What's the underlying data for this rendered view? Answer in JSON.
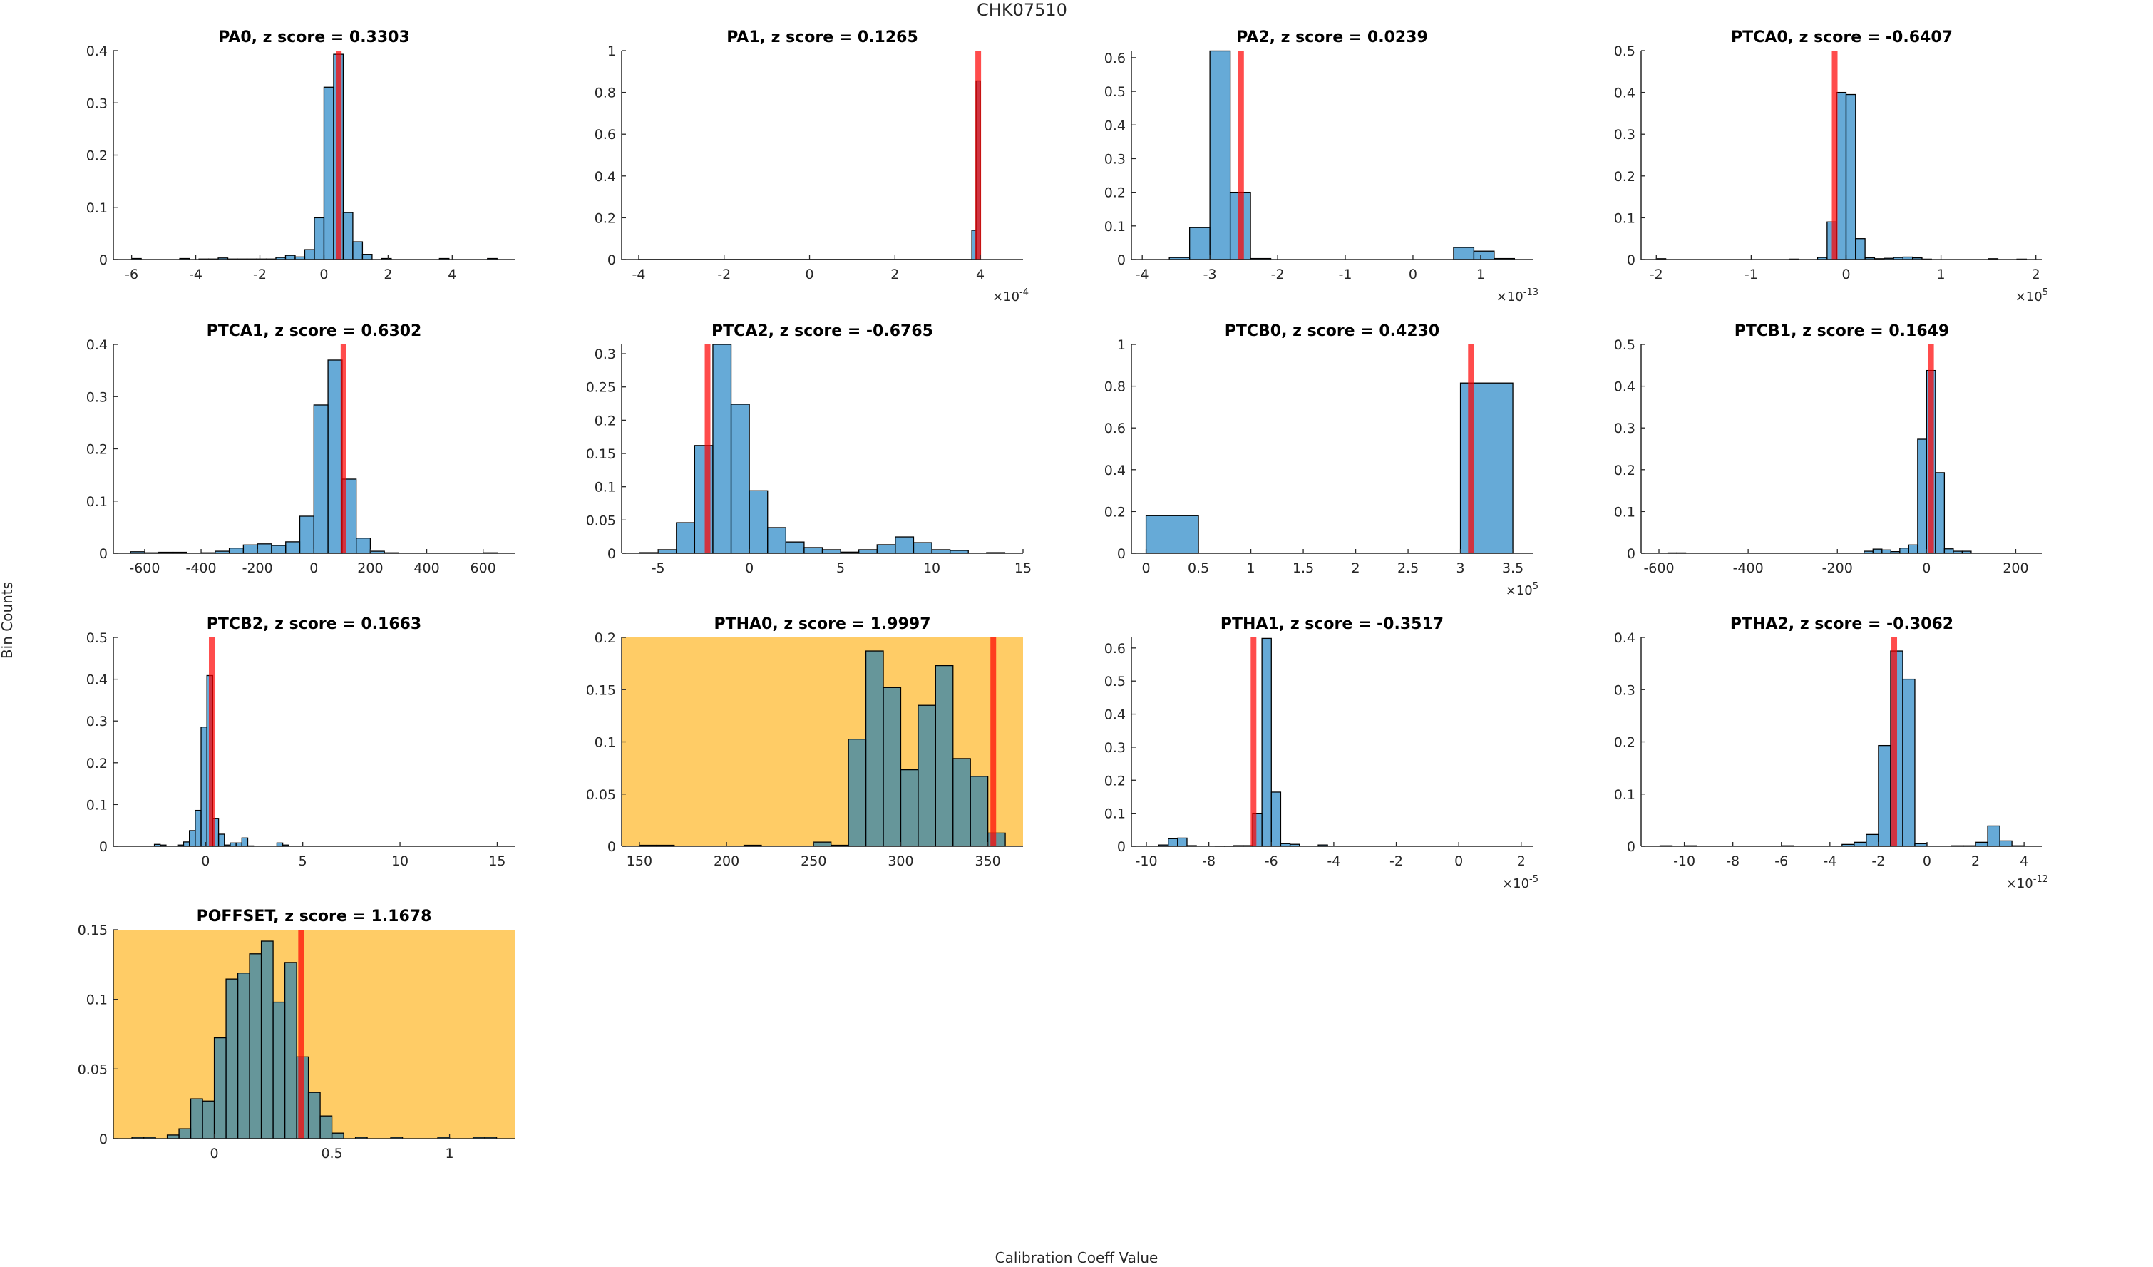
{
  "figure": {
    "title": "CHK07510"
  },
  "colors": {
    "bar": "#0072BD",
    "marker": "#FF0000",
    "highlight_bg": "#FFCC66"
  },
  "chart_data": {
    "type": "bar",
    "subtype": "histogram-grid",
    "title": "CHK07510",
    "xlabel": "Calibration Coeff Value",
    "ylabel": "Bin Counts",
    "grid": false,
    "panels": [
      {
        "title": "PA0, z score = 0.3303",
        "xlim": [
          -6.57,
          5.95
        ],
        "ylim": [
          0,
          0.4
        ],
        "xticks": [
          -6,
          -4,
          -2,
          0,
          2,
          4
        ],
        "yticks": [
          0,
          0.1,
          0.2,
          0.3,
          0.4
        ],
        "bin_start": -6.0,
        "bin_width": 0.3,
        "counts": [
          0.002,
          0,
          0,
          0,
          0,
          0.002,
          0,
          0.001,
          0.001,
          0.003,
          0.001,
          0.001,
          0.001,
          0.001,
          0.001,
          0.004,
          0.008,
          0.005,
          0.019,
          0.08,
          0.33,
          0.393,
          0.09,
          0.034,
          0.01,
          0,
          0.002,
          0,
          0,
          0,
          0,
          0,
          0.002,
          0,
          0,
          0,
          0,
          0.002
        ],
        "marker": 0.46,
        "highlighted": false
      },
      {
        "title": "PA1, z score = 0.1265",
        "xlim": [
          -4.4,
          5.0
        ],
        "ylim": [
          0,
          1
        ],
        "xticks": [
          -4,
          -2,
          0,
          2,
          4
        ],
        "yticks": [
          0,
          0.2,
          0.4,
          0.6,
          0.8,
          1
        ],
        "x_exponent": {
          "base": "×10",
          "power": "-4"
        },
        "edges": [
          -4.0,
          3.8,
          3.9,
          4.0
        ],
        "counts": [
          0.0005,
          0.14,
          0.855
        ],
        "marker": 3.95,
        "highlighted": false
      },
      {
        "title": "PA2, z score = 0.0239",
        "xlim": [
          -4.16,
          1.77
        ],
        "ylim": [
          0,
          0.621
        ],
        "xticks": [
          -4,
          -3,
          -2,
          -1,
          0,
          1
        ],
        "yticks": [
          0,
          0.1,
          0.2,
          0.3,
          0.4,
          0.5,
          0.6
        ],
        "x_exponent": {
          "base": "×10",
          "power": "-13"
        },
        "bin_start": -3.9,
        "bin_width": 0.3,
        "counts": [
          0,
          0.006,
          0.095,
          0.62,
          0.2,
          0.003,
          0,
          0,
          0,
          0,
          0,
          0,
          0,
          0,
          0,
          0.036,
          0.025,
          0.003
        ],
        "marker": -2.54,
        "highlighted": false
      },
      {
        "title": "PTCA0, z score = -0.6407",
        "xlim": [
          -2.16,
          2.07
        ],
        "ylim": [
          0,
          0.5
        ],
        "xticks": [
          -2,
          -1,
          0,
          1,
          2
        ],
        "yticks": [
          0,
          0.1,
          0.2,
          0.3,
          0.4,
          0.5
        ],
        "x_exponent": {
          "base": "×10",
          "power": "5"
        },
        "bin_start": -2.0,
        "bin_width": 0.1,
        "counts": [
          0.002,
          0,
          0,
          0,
          0,
          0,
          0,
          0,
          0,
          0,
          0,
          0,
          0,
          0,
          0.001,
          0,
          0,
          0.005,
          0.09,
          0.4,
          0.395,
          0.05,
          0.004,
          0.002,
          0.003,
          0.005,
          0.006,
          0.004,
          0.001,
          0,
          0,
          0,
          0,
          0,
          0,
          0.002,
          0,
          0,
          0.001,
          0
        ],
        "marker": -0.12,
        "highlighted": false
      },
      {
        "title": "PTCA1, z score = 0.6302",
        "xlim": [
          -711,
          712
        ],
        "ylim": [
          0,
          0.4
        ],
        "xticks": [
          -600,
          -400,
          -200,
          0,
          200,
          400,
          600
        ],
        "yticks": [
          0,
          0.1,
          0.2,
          0.3,
          0.4
        ],
        "bin_start": -650,
        "bin_width": 50,
        "counts": [
          0.003,
          0.001,
          0.002,
          0.002,
          0,
          0.001,
          0.004,
          0.01,
          0.016,
          0.018,
          0.015,
          0.022,
          0.071,
          0.284,
          0.37,
          0.142,
          0.029,
          0.004,
          0.001,
          0,
          0,
          0,
          0,
          0,
          0,
          0.001
        ],
        "marker": 105,
        "highlighted": false
      },
      {
        "title": "PTCA2, z score = -0.6765",
        "xlim": [
          -7,
          15
        ],
        "ylim": [
          0,
          0.314
        ],
        "xticks": [
          -5,
          0,
          5,
          10,
          15
        ],
        "yticks": [
          0,
          0.05,
          0.1,
          0.15,
          0.2,
          0.25,
          0.3
        ],
        "bin_start": -6,
        "bin_width": 1,
        "counts": [
          0.001,
          0.0054,
          0.046,
          0.162,
          0.314,
          0.224,
          0.094,
          0.0386,
          0.017,
          0.0086,
          0.0054,
          0.0018,
          0.0054,
          0.0129,
          0.0246,
          0.016,
          0.0054,
          0.0043,
          0,
          0.001
        ],
        "marker": -2.29,
        "highlighted": false
      },
      {
        "title": "PTCB0, z score = 0.4230",
        "xlim": [
          -0.14,
          3.69
        ],
        "ylim": [
          0,
          1
        ],
        "xticks": [
          0,
          0.5,
          1,
          1.5,
          2,
          2.5,
          3,
          3.5
        ],
        "yticks": [
          0,
          0.2,
          0.4,
          0.6,
          0.8,
          1
        ],
        "x_exponent": {
          "base": "×10",
          "power": "5"
        },
        "bin_start": 0,
        "bin_width": 0.5,
        "counts": [
          0.18,
          0,
          0,
          0,
          0,
          0,
          0.815
        ],
        "marker": 3.1,
        "highlighted": false
      },
      {
        "title": "PTCB1, z score = 0.1649",
        "xlim": [
          -640,
          260
        ],
        "ylim": [
          0,
          0.5
        ],
        "xticks": [
          -600,
          -400,
          -200,
          0,
          200
        ],
        "yticks": [
          0,
          0.1,
          0.2,
          0.3,
          0.4,
          0.5
        ],
        "bin_start": -600,
        "bin_width": 20,
        "counts": [
          0,
          0.001,
          0.001,
          0,
          0,
          0,
          0,
          0,
          0,
          0,
          0,
          0,
          0,
          0,
          0,
          0,
          0,
          0,
          0,
          0,
          0,
          0,
          0,
          0.005,
          0.01,
          0.008,
          0.004,
          0.0125,
          0.02,
          0.273,
          0.4375,
          0.193,
          0.0107,
          0.005,
          0.005,
          0,
          0,
          0,
          0,
          0,
          0
        ],
        "marker": 10,
        "highlighted": false
      },
      {
        "title": "PTCB2, z score = 0.1663",
        "xlim": [
          -4.74,
          15.9
        ],
        "ylim": [
          0,
          0.5
        ],
        "xticks": [
          0,
          5,
          10,
          15
        ],
        "yticks": [
          0,
          0.1,
          0.2,
          0.3,
          0.4,
          0.5
        ],
        "bin_start": -3.83,
        "bin_width": 0.3,
        "counts": [
          0,
          0,
          0,
          0,
          0.0046,
          0.003,
          0,
          0,
          0.003,
          0.0104,
          0.0376,
          0.086,
          0.2855,
          0.4087,
          0.067,
          0.029,
          0.003,
          0.008,
          0.008,
          0.02,
          0.001,
          0,
          0,
          0,
          0,
          0.008,
          0.003,
          0,
          0,
          0,
          0,
          0,
          0,
          0,
          0,
          0,
          0,
          0,
          0,
          0,
          0,
          0,
          0,
          0,
          0,
          0,
          0,
          0,
          0,
          0,
          0,
          0,
          0,
          0,
          0,
          0,
          0,
          0,
          0,
          0,
          0,
          0
        ],
        "marker": 0.32,
        "highlighted": false
      },
      {
        "title": "PTHA0, z score = 1.9997",
        "xlim": [
          139.8,
          370.2
        ],
        "ylim": [
          0,
          0.2
        ],
        "xticks": [
          150,
          200,
          250,
          300,
          350
        ],
        "yticks": [
          0,
          0.05,
          0.1,
          0.15,
          0.2
        ],
        "bin_start": 150,
        "bin_width": 10,
        "counts": [
          0.001,
          0.001,
          0,
          0,
          0,
          0,
          0.001,
          0,
          0,
          0,
          0.004,
          0.001,
          0.1026,
          0.187,
          0.152,
          0.0733,
          0.135,
          0.173,
          0.084,
          0.067,
          0.0127
        ],
        "marker": 353.1,
        "highlighted": true
      },
      {
        "title": "PTHA1, z score = -0.3517",
        "xlim": [
          -10.48,
          2.37
        ],
        "ylim": [
          0,
          0.632
        ],
        "xticks": [
          -10,
          -8,
          -6,
          -4,
          -2,
          0,
          2
        ],
        "yticks": [
          0,
          0.1,
          0.2,
          0.3,
          0.4,
          0.5,
          0.6
        ],
        "x_exponent": {
          "base": "×10",
          "power": "-5"
        },
        "bin_start": -9.9,
        "bin_width": 0.3,
        "counts": [
          0,
          0.004,
          0.023,
          0.025,
          0.002,
          0,
          0,
          0.0005,
          0.0005,
          0.002,
          0.002,
          0.1,
          0.629,
          0.164,
          0.008,
          0.006,
          0,
          0,
          0.004,
          0,
          0,
          0,
          0,
          0,
          0,
          0,
          0,
          0,
          0,
          0,
          0,
          0,
          0,
          0,
          0,
          0,
          0,
          0,
          0
        ],
        "marker": -6.57,
        "highlighted": false
      },
      {
        "title": "PTHA2, z score = -0.3062",
        "xlim": [
          -11.78,
          4.76
        ],
        "ylim": [
          0,
          0.4
        ],
        "xticks": [
          -10,
          -8,
          -6,
          -4,
          -2,
          0,
          2,
          4
        ],
        "yticks": [
          0,
          0.1,
          0.2,
          0.3,
          0.4
        ],
        "x_exponent": {
          "base": "×10",
          "power": "-12"
        },
        "bin_start": -11,
        "bin_width": 0.5,
        "counts": [
          0.001,
          0,
          0.001,
          0,
          0,
          0,
          0,
          0,
          0,
          0,
          0.001,
          0,
          0,
          0,
          0,
          0.0036,
          0.0077,
          0.0227,
          0.193,
          0.374,
          0.32,
          0.005,
          0,
          0,
          0.001,
          0.001,
          0.0077,
          0.039,
          0.0104,
          0.001
        ],
        "marker": -1.35,
        "highlighted": false
      },
      {
        "title": "POFFSET, z score = 1.1678",
        "xlim": [
          -0.429,
          1.277
        ],
        "ylim": [
          0,
          0.15
        ],
        "xticks": [
          0,
          0.5,
          1
        ],
        "yticks": [
          0,
          0.05,
          0.1,
          0.15
        ],
        "bin_start": -0.35,
        "bin_width": 0.05,
        "counts": [
          0.001,
          0.001,
          0,
          0.0026,
          0.0071,
          0.0286,
          0.027,
          0.0724,
          0.1146,
          0.1189,
          0.1327,
          0.1418,
          0.098,
          0.1265,
          0.0587,
          0.0332,
          0.0163,
          0.004,
          0,
          0.001,
          0,
          0,
          0.001,
          0,
          0,
          0,
          0.001,
          0,
          0,
          0.001,
          0.001
        ],
        "marker": 0.369,
        "highlighted": true
      }
    ]
  }
}
